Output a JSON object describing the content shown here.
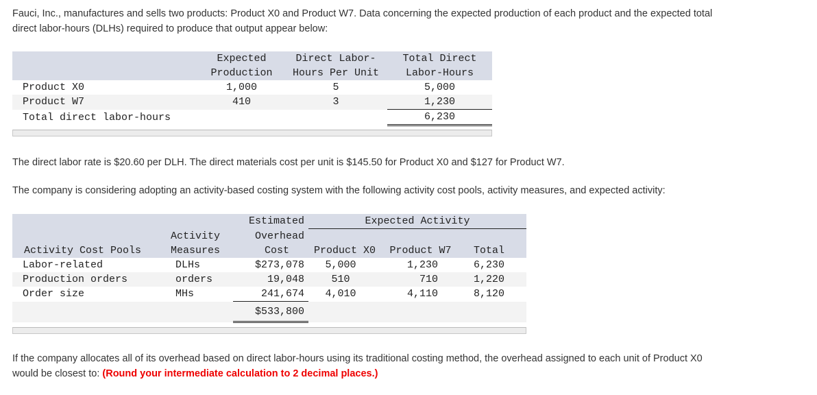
{
  "intro": "Fauci, Inc., manufactures and sells two products: Product X0 and Product W7. Data concerning the expected production of each product and the expected total direct labor-hours (DLHs) required to produce that output appear below:",
  "table1": {
    "headers": {
      "expected_1": "Expected",
      "expected_2": "Production",
      "dlh_1": "Direct Labor-",
      "dlh_2": "Hours Per Unit",
      "total_1": "Total Direct",
      "total_2": "Labor-Hours"
    },
    "rows": [
      {
        "label": "Product X0",
        "production": "1,000",
        "hours": "5",
        "total": "5,000"
      },
      {
        "label": "Product W7",
        "production": "410",
        "hours": "3",
        "total": "1,230"
      },
      {
        "label": "Total direct labor-hours",
        "production": "",
        "hours": "",
        "total": "6,230"
      }
    ]
  },
  "rate_text": "The direct labor rate is $20.60 per DLH. The direct materials cost per unit is $145.50 for Product X0 and $127 for Product W7.",
  "abc_text": "The company is considering adopting an activity-based costing system with the following activity cost pools, activity measures, and expected activity:",
  "table2": {
    "headers": {
      "estimated": "Estimated",
      "expected_activity": "Expected Activity",
      "activity": "Activity",
      "overhead": "Overhead",
      "pools": "Activity Cost Pools",
      "measures": "Measures",
      "cost": "Cost",
      "x0": "Product X0",
      "w7": "Product W7",
      "total": "Total"
    },
    "rows": [
      {
        "pool": "Labor-related",
        "measure": "DLHs",
        "cost": "$273,078",
        "x0": "5,000",
        "w7": "1,230",
        "total": "6,230"
      },
      {
        "pool": "Production orders",
        "measure": "orders",
        "cost": "19,048",
        "x0": "510",
        "w7": "710",
        "total": "1,220"
      },
      {
        "pool": "Order size",
        "measure": "MHs",
        "cost": "241,674",
        "x0": "4,010",
        "w7": "4,110",
        "total": "8,120"
      }
    ],
    "total_cost": "$533,800"
  },
  "question": "If the company allocates all of its overhead based on direct labor-hours using its traditional costing method, the overhead assigned to each unit of Product X0 would be closest to:",
  "instruction": "(Round your intermediate calculation to 2 decimal places.)"
}
